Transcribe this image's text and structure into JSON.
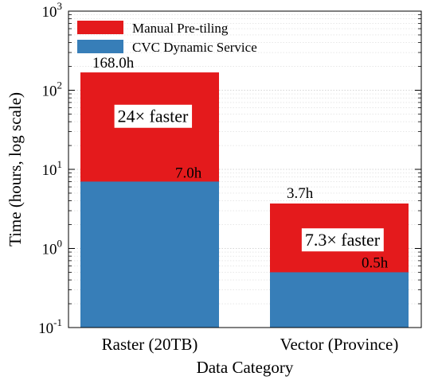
{
  "chart_data": {
    "type": "bar",
    "stacked": true,
    "y_scale": "log",
    "ylim": [
      0.1,
      1000
    ],
    "xlabel": "Data Category",
    "ylabel": "Time (hours, log scale)",
    "categories": [
      "Raster (20TB)",
      "Vector (Province)"
    ],
    "series": [
      {
        "name": "Manual Pre-tiling",
        "values": [
          168.0,
          3.7
        ],
        "color": "#e41a1c"
      },
      {
        "name": "CVC Dynamic Service",
        "values": [
          7.0,
          0.5
        ],
        "color": "#377eb8"
      }
    ],
    "value_labels": {
      "manual": [
        "168.0h",
        "3.7h"
      ],
      "cvc": [
        "7.0h",
        "0.5h"
      ]
    },
    "annotations": [
      "24× faster",
      "7.3× faster"
    ],
    "y_ticks": [
      {
        "base": "10",
        "exp": "-1",
        "value": 0.1
      },
      {
        "base": "10",
        "exp": "0",
        "value": 1
      },
      {
        "base": "10",
        "exp": "1",
        "value": 10
      },
      {
        "base": "10",
        "exp": "2",
        "value": 100
      },
      {
        "base": "10",
        "exp": "3",
        "value": 1000
      }
    ],
    "grid": true,
    "legend_position": "top-left"
  }
}
